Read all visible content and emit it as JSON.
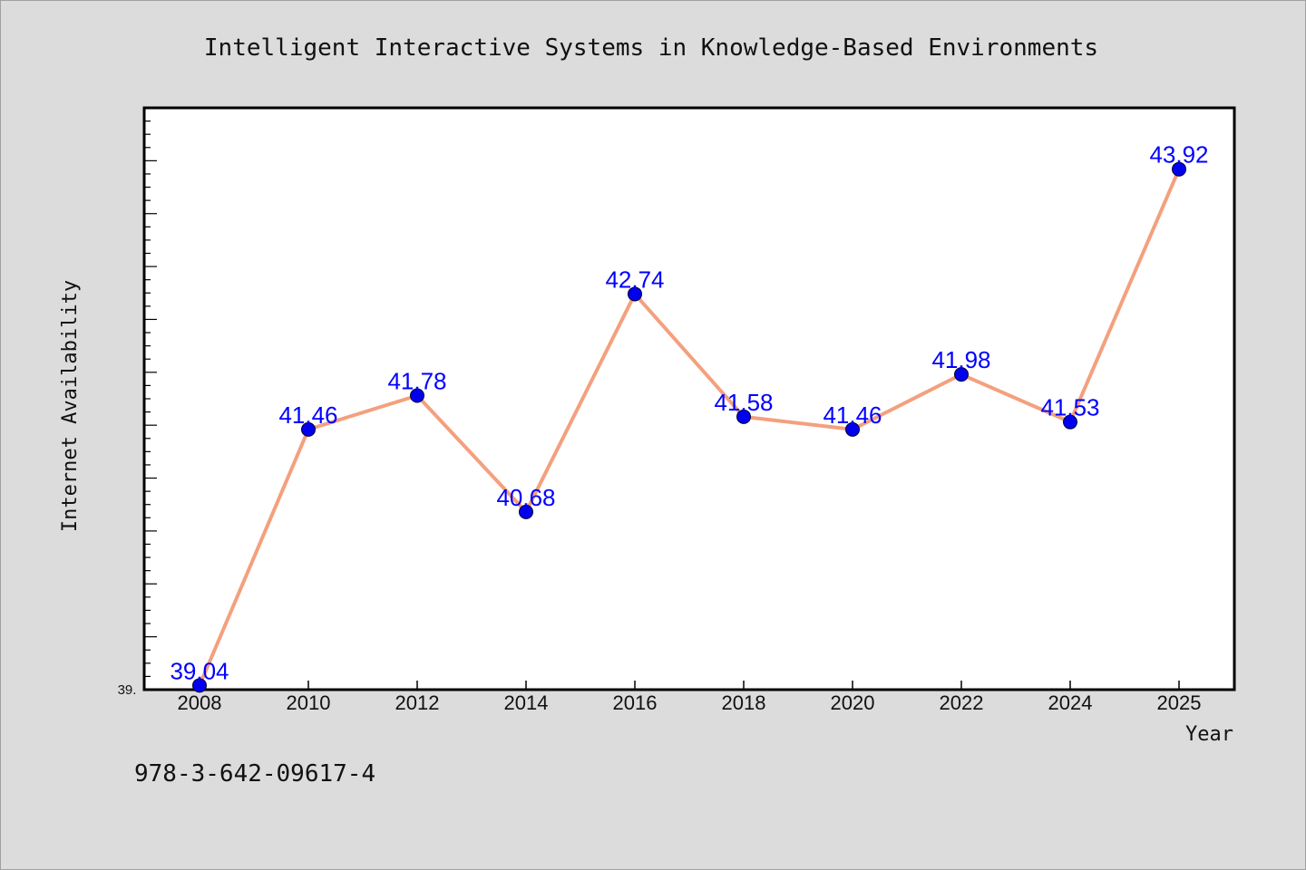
{
  "caption": "978-3-642-09617-4",
  "colors": {
    "line": "#f4a07e",
    "marker": "#0000ee",
    "data_label": "#0000ff",
    "plot_bg": "#ffffff",
    "page_bg": "#dcdcdc"
  },
  "chart_data": {
    "type": "line",
    "title": "Intelligent Interactive Systems in Knowledge-Based Environments",
    "xlabel": "Year",
    "ylabel": "Internet Availability",
    "categories": [
      "2008",
      "2010",
      "2012",
      "2014",
      "2016",
      "2018",
      "2020",
      "2022",
      "2024",
      "2025"
    ],
    "series": [
      {
        "values": [
          39.04,
          41.46,
          41.78,
          40.68,
          42.74,
          41.58,
          41.46,
          41.98,
          41.53,
          43.92
        ],
        "labels": [
          "39.04",
          "41.46",
          "41.78",
          "40.68",
          "42.74",
          "41.58",
          "41.46",
          "41.98",
          "41.53",
          "43.92"
        ]
      }
    ],
    "y_tick_label": "39.",
    "ylim": [
      39.0,
      44.5
    ],
    "grid": false,
    "legend": "none"
  }
}
